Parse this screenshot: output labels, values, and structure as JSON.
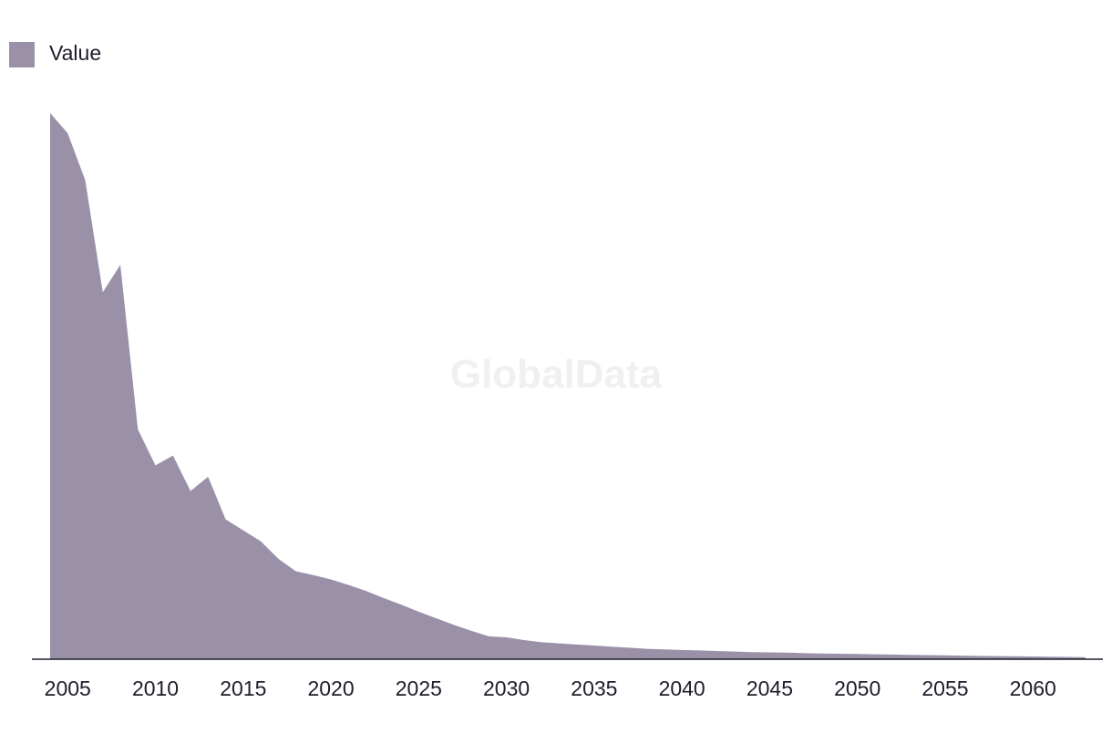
{
  "watermark": "GlobalData",
  "chart_data": {
    "type": "area",
    "title": "",
    "xlabel": "",
    "ylabel": "",
    "legend": {
      "position": "top-left",
      "entries": [
        "Value"
      ]
    },
    "grid": false,
    "xlim": [
      2004,
      2063
    ],
    "ylim": [
      0,
      100
    ],
    "x_ticks": [
      2005,
      2010,
      2015,
      2020,
      2025,
      2030,
      2035,
      2040,
      2045,
      2050,
      2055,
      2060
    ],
    "series": [
      {
        "name": "Value",
        "color": "#9a91a9",
        "x": [
          2004,
          2005,
          2006,
          2007,
          2008,
          2009,
          2010,
          2011,
          2012,
          2013,
          2014,
          2015,
          2016,
          2017,
          2018,
          2019,
          2020,
          2021,
          2022,
          2023,
          2024,
          2025,
          2026,
          2027,
          2028,
          2029,
          2030,
          2031,
          2032,
          2033,
          2034,
          2035,
          2036,
          2037,
          2038,
          2039,
          2040,
          2041,
          2042,
          2043,
          2044,
          2045,
          2046,
          2047,
          2048,
          2049,
          2050,
          2051,
          2052,
          2053,
          2054,
          2055,
          2056,
          2057,
          2058,
          2059,
          2060,
          2061,
          2062,
          2063
        ],
        "values": [
          100,
          96.3,
          87.7,
          67.2,
          72.2,
          42.1,
          35.5,
          37.3,
          30.8,
          33.4,
          25.6,
          23.6,
          21.6,
          18.4,
          16.1,
          15.4,
          14.6,
          13.6,
          12.5,
          11.2,
          10.0,
          8.7,
          7.5,
          6.3,
          5.2,
          4.2,
          4.0,
          3.5,
          3.1,
          2.9,
          2.7,
          2.5,
          2.3,
          2.1,
          1.9,
          1.8,
          1.7,
          1.6,
          1.5,
          1.4,
          1.3,
          1.25,
          1.2,
          1.1,
          1.05,
          1.0,
          0.95,
          0.9,
          0.85,
          0.8,
          0.75,
          0.7,
          0.65,
          0.6,
          0.57,
          0.54,
          0.5,
          0.45,
          0.42,
          0.38
        ]
      }
    ]
  }
}
